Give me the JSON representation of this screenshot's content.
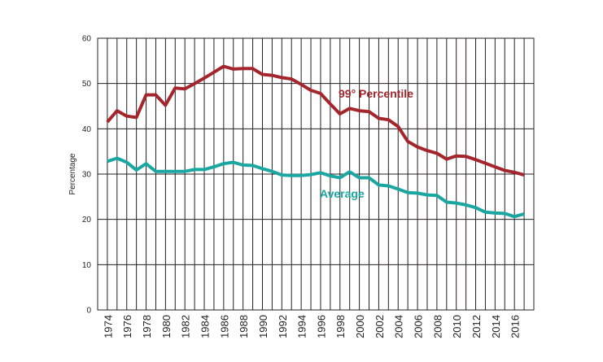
{
  "chart_data": {
    "type": "line",
    "title": "",
    "xlabel": "",
    "ylabel": "Percentage",
    "ylim": [
      0,
      60
    ],
    "xlim": [
      1974,
      2017
    ],
    "yticks": [
      0,
      10,
      20,
      30,
      40,
      50,
      60
    ],
    "xtick_labels": [
      "1974",
      "1976",
      "1978",
      "1980",
      "1982",
      "1984",
      "1986",
      "1988",
      "1990",
      "1992",
      "1994",
      "1996",
      "1998",
      "2000",
      "2002",
      "2004",
      "2006",
      "2008",
      "2010",
      "2012",
      "2014",
      "2016"
    ],
    "grid": true,
    "x": [
      1974,
      1975,
      1976,
      1977,
      1978,
      1979,
      1980,
      1981,
      1982,
      1983,
      1984,
      1985,
      1986,
      1987,
      1988,
      1989,
      1990,
      1991,
      1992,
      1993,
      1994,
      1995,
      1996,
      1997,
      1998,
      1999,
      2000,
      2001,
      2002,
      2003,
      2004,
      2005,
      2006,
      2007,
      2008,
      2009,
      2010,
      2011,
      2012,
      2013,
      2014,
      2015,
      2016,
      2017
    ],
    "series": [
      {
        "name": "99° Percentile",
        "color": "#a4262c",
        "values": [
          41.5,
          44,
          42.8,
          42.5,
          47.5,
          47.5,
          45.2,
          49,
          48.8,
          50,
          51.2,
          52.5,
          53.8,
          53.2,
          53.3,
          53.3,
          52,
          51.8,
          51.3,
          51,
          49.8,
          48.5,
          47.8,
          45.5,
          43.3,
          44.5,
          44,
          43.8,
          42.3,
          42,
          40.5,
          37.2,
          36,
          35.2,
          34.6,
          33.3,
          34,
          33.9,
          33.2,
          32.4,
          31.6,
          30.8,
          30.4,
          29.8
        ]
      },
      {
        "name": "Average",
        "color": "#1aa7a2",
        "values": [
          32.8,
          33.5,
          32.6,
          30.9,
          32.3,
          30.6,
          30.6,
          30.6,
          30.6,
          31,
          31,
          31.6,
          32.3,
          32.6,
          32,
          31.9,
          31.2,
          30.6,
          29.8,
          29.7,
          29.7,
          29.9,
          30.3,
          29.6,
          29.2,
          30.5,
          29.2,
          29.2,
          27.6,
          27.4,
          26.7,
          25.9,
          25.8,
          25.4,
          25.3,
          23.8,
          23.6,
          23.2,
          22.6,
          21.6,
          21.4,
          21.3,
          20.6,
          21.2
        ]
      }
    ]
  }
}
